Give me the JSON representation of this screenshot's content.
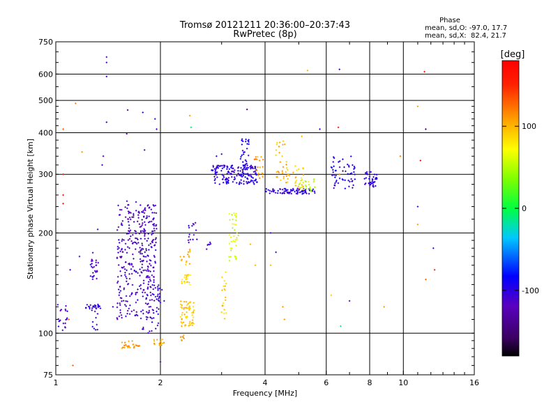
{
  "chart_data": {
    "type": "scatter",
    "title": "Tromsø 20121211 20:36:00–20:37:43",
    "subtitle": "RwPretec (8p)",
    "xlabel": "Frequency [MHz]",
    "ylabel": "Stationary phase Virtual Height [km]",
    "x_scale": "log",
    "y_scale": "log",
    "xlim": [
      1,
      16
    ],
    "ylim": [
      75,
      750
    ],
    "grid": true,
    "x_ticks": [
      1,
      2,
      4,
      6,
      8,
      10,
      16
    ],
    "x_tick_labels": [
      "1",
      "2",
      "4",
      "6",
      "8",
      "10",
      "16"
    ],
    "y_ticks": [
      75,
      100,
      200,
      300,
      400,
      500,
      600,
      750
    ],
    "y_tick_labels": [
      "75",
      "100",
      "200",
      "300",
      "400",
      "500",
      "600",
      "750"
    ],
    "phase_stats": {
      "heading": "Phase",
      "line_O": "mean, sd,O: -97.0, 17.7",
      "line_X": "mean, sd,X:  82.4, 21.7"
    },
    "colorbar": {
      "label": "[deg]",
      "range": [
        -180,
        180
      ],
      "ticks": [
        100,
        0,
        -100
      ],
      "tick_labels": [
        "100",
        "0",
        "-100"
      ]
    },
    "clusters": [
      {
        "x": [
          1.0,
          1.08
        ],
        "y": [
          100,
          125
        ],
        "phase": -110,
        "n": 20
      },
      {
        "x": [
          1.22,
          1.35
        ],
        "y": [
          118,
          122
        ],
        "phase": -105,
        "n": 25
      },
      {
        "x": [
          1.25,
          1.33
        ],
        "y": [
          145,
          175
        ],
        "phase": -115,
        "n": 25
      },
      {
        "x": [
          1.25,
          1.32
        ],
        "y": [
          102,
          118
        ],
        "phase": -110,
        "n": 10
      },
      {
        "x": [
          1.5,
          1.95
        ],
        "y": [
          110,
          250
        ],
        "phase": -115,
        "n": 330
      },
      {
        "x": [
          1.75,
          1.95
        ],
        "y": [
          100,
          245
        ],
        "phase": -108,
        "n": 60
      },
      {
        "x": [
          1.95,
          2.0
        ],
        "y": [
          105,
          140
        ],
        "phase": -105,
        "n": 20
      },
      {
        "x": [
          1.55,
          1.75
        ],
        "y": [
          90,
          95
        ],
        "phase": 110,
        "n": 25
      },
      {
        "x": [
          1.9,
          2.05
        ],
        "y": [
          92,
          96
        ],
        "phase": 105,
        "n": 15
      },
      {
        "x": [
          2.28,
          2.5
        ],
        "y": [
          105,
          125
        ],
        "phase": 95,
        "n": 60
      },
      {
        "x": [
          2.3,
          2.45
        ],
        "y": [
          140,
          150
        ],
        "phase": 85,
        "n": 20
      },
      {
        "x": [
          2.28,
          2.45
        ],
        "y": [
          160,
          180
        ],
        "phase": 100,
        "n": 15
      },
      {
        "x": [
          2.25,
          2.35
        ],
        "y": [
          95,
          100
        ],
        "phase": 115,
        "n": 8
      },
      {
        "x": [
          2.4,
          2.55
        ],
        "y": [
          185,
          215
        ],
        "phase": -110,
        "n": 15
      },
      {
        "x": [
          2.7,
          2.8
        ],
        "y": [
          175,
          190
        ],
        "phase": -105,
        "n": 6
      },
      {
        "x": [
          3.0,
          3.1
        ],
        "y": [
          110,
          160
        ],
        "phase": 90,
        "n": 20
      },
      {
        "x": [
          3.15,
          3.35
        ],
        "y": [
          165,
          230
        ],
        "phase": 60,
        "n": 40
      },
      {
        "x": [
          2.8,
          3.8
        ],
        "y": [
          280,
          320
        ],
        "phase": -100,
        "n": 170
      },
      {
        "x": [
          3.4,
          3.6
        ],
        "y": [
          320,
          385
        ],
        "phase": -95,
        "n": 25
      },
      {
        "x": [
          3.7,
          3.95
        ],
        "y": [
          290,
          340
        ],
        "phase": 110,
        "n": 20
      },
      {
        "x": [
          4.0,
          5.6
        ],
        "y": [
          262,
          272
        ],
        "phase": -100,
        "n": 80
      },
      {
        "x": [
          4.3,
          4.7
        ],
        "y": [
          280,
          380
        ],
        "phase": 100,
        "n": 35
      },
      {
        "x": [
          4.8,
          5.4
        ],
        "y": [
          270,
          320
        ],
        "phase": 90,
        "n": 25
      },
      {
        "x": [
          5.0,
          5.6
        ],
        "y": [
          265,
          290
        ],
        "phase": 50,
        "n": 20
      },
      {
        "x": [
          6.2,
          7.3
        ],
        "y": [
          270,
          340
        ],
        "phase": -100,
        "n": 55
      },
      {
        "x": [
          7.7,
          8.4
        ],
        "y": [
          275,
          305
        ],
        "phase": -100,
        "n": 40
      }
    ],
    "scattered_points": [
      [
        1.4,
        675,
        -110
      ],
      [
        1.4,
        650,
        -110
      ],
      [
        1.4,
        590,
        -110
      ],
      [
        1.4,
        430,
        -110
      ],
      [
        1.14,
        490,
        120
      ],
      [
        1.05,
        410,
        130
      ],
      [
        1.05,
        300,
        150
      ],
      [
        1.05,
        260,
        160
      ],
      [
        1.05,
        245,
        170
      ],
      [
        1.19,
        350,
        110
      ],
      [
        1.36,
        320,
        -115
      ],
      [
        1.37,
        340,
        -110
      ],
      [
        1.61,
        468,
        -150
      ],
      [
        1.6,
        397,
        -120
      ],
      [
        1.78,
        460,
        -110
      ],
      [
        1.8,
        355,
        -110
      ],
      [
        1.95,
        410,
        -110
      ],
      [
        1.93,
        440,
        -110
      ],
      [
        2.43,
        450,
        110
      ],
      [
        2.45,
        415,
        -10
      ],
      [
        3.55,
        470,
        -150
      ],
      [
        2.9,
        340,
        -100
      ],
      [
        3.0,
        345,
        -110
      ],
      [
        5.1,
        390,
        100
      ],
      [
        5.75,
        410,
        -110
      ],
      [
        6.55,
        620,
        -110
      ],
      [
        6.5,
        415,
        160
      ],
      [
        6.55,
        300,
        120
      ],
      [
        6.6,
        105,
        -10
      ],
      [
        6.2,
        130,
        90
      ],
      [
        7.0,
        125,
        -115
      ],
      [
        8.8,
        120,
        110
      ],
      [
        9.8,
        340,
        120
      ],
      [
        11.0,
        480,
        110
      ],
      [
        11.0,
        212,
        110
      ],
      [
        11.2,
        330,
        170
      ],
      [
        11.5,
        610,
        170
      ],
      [
        11.6,
        410,
        -150
      ],
      [
        11.6,
        145,
        130
      ],
      [
        11.0,
        240,
        -110
      ],
      [
        12.2,
        180,
        -110
      ],
      [
        12.3,
        155,
        150
      ],
      [
        15.8,
        400,
        130
      ],
      [
        4.15,
        200,
        -110
      ],
      [
        4.3,
        175,
        -110
      ],
      [
        4.15,
        160,
        100
      ],
      [
        4.5,
        120,
        110
      ],
      [
        4.55,
        110,
        110
      ],
      [
        5.3,
        615,
        100
      ],
      [
        1.12,
        80,
        130
      ],
      [
        1.46,
        120,
        -105
      ],
      [
        1.32,
        205,
        -110
      ],
      [
        2.02,
        135,
        -110
      ],
      [
        2.05,
        125,
        -110
      ],
      [
        2.0,
        82,
        -120
      ],
      [
        1.09,
        110,
        130
      ],
      [
        1.1,
        155,
        -110
      ],
      [
        1.17,
        170,
        -110
      ],
      [
        3.75,
        160,
        100
      ],
      [
        3.63,
        185,
        100
      ]
    ]
  }
}
